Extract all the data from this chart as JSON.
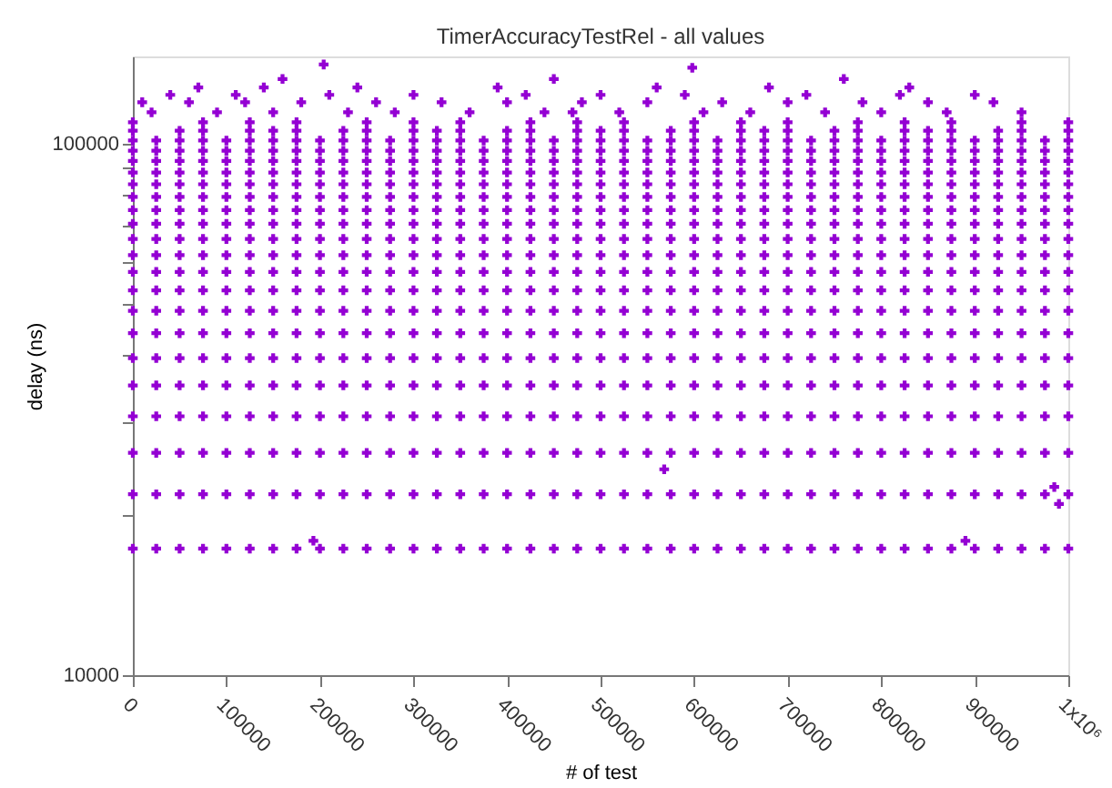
{
  "chart_data": {
    "type": "scatter",
    "title": "TimerAccuracyTestRel - all values",
    "xlabel": "# of test",
    "ylabel": "delay (ns)",
    "log": "y",
    "marker": "cross",
    "xlim": [
      0,
      1000000
    ],
    "xticks": [
      0,
      100000,
      200000,
      300000,
      400000,
      500000,
      600000,
      700000,
      800000,
      900000,
      {
        "value": 1000000,
        "label": "1x10⁶"
      }
    ],
    "ylim": [
      10000,
      146000
    ],
    "yticks": [
      10000,
      {
        "value": 20000,
        "label": null
      },
      {
        "value": 30000,
        "label": null
      },
      {
        "value": 40000,
        "label": null
      },
      {
        "value": 50000,
        "label": null
      },
      {
        "value": 60000,
        "label": null
      },
      {
        "value": 70000,
        "label": null
      },
      {
        "value": 80000,
        "label": null
      },
      {
        "value": 90000,
        "label": null
      },
      100000
    ],
    "x": [
      0,
      25000,
      50000,
      75000,
      100000,
      125000,
      150000,
      175000,
      200000,
      225000,
      250000,
      275000,
      300000,
      325000,
      350000,
      375000,
      400000,
      425000,
      450000,
      475000,
      500000,
      525000,
      550000,
      575000,
      600000,
      625000,
      650000,
      675000,
      700000,
      725000,
      750000,
      775000,
      800000,
      825000,
      850000,
      875000,
      900000,
      925000,
      950000,
      975000,
      1000000
    ],
    "series": [
      {
        "color": "#9400d3",
        "values": [
          17300,
          17300,
          17300,
          17300,
          17300,
          17300,
          17300,
          17300,
          17300,
          17300,
          17300,
          17300,
          17300,
          17300,
          17300,
          17300,
          17300,
          17300,
          17300,
          17300,
          17300,
          17300,
          17300,
          17300,
          17300,
          17300,
          17300,
          17300,
          17300,
          17300,
          17300,
          17300,
          17300,
          17300,
          17300,
          17300,
          17300,
          17300,
          17300,
          17300,
          17300
        ]
      },
      {
        "color": "#9400d3",
        "values": [
          21900,
          21900,
          21900,
          21900,
          21900,
          21900,
          21900,
          21900,
          21900,
          21900,
          21900,
          21900,
          21900,
          21900,
          21900,
          21900,
          21900,
          21900,
          21900,
          21900,
          21900,
          21900,
          21900,
          21900,
          21900,
          21900,
          21900,
          21900,
          21900,
          21900,
          21900,
          21900,
          21900,
          21900,
          21900,
          21900,
          21900,
          21900,
          21900,
          21900,
          21900
        ]
      },
      {
        "color": "#9400d3",
        "values": [
          26200,
          26200,
          26200,
          26200,
          26200,
          26200,
          26200,
          26200,
          26200,
          26200,
          26200,
          26200,
          26200,
          26200,
          26200,
          26200,
          26200,
          26200,
          26200,
          26200,
          26200,
          26200,
          26200,
          26200,
          26200,
          26200,
          26200,
          26200,
          26200,
          26200,
          26200,
          26200,
          26200,
          26200,
          26200,
          26200,
          26200,
          26200,
          26200,
          26200,
          26200
        ]
      },
      {
        "color": "#9400d3",
        "values": [
          30700,
          30700,
          30700,
          30700,
          30700,
          30700,
          30700,
          30700,
          30700,
          30700,
          30700,
          30700,
          30700,
          30700,
          30700,
          30700,
          30700,
          30700,
          30700,
          30700,
          30700,
          30700,
          30700,
          30700,
          30700,
          30700,
          30700,
          30700,
          30700,
          30700,
          30700,
          30700,
          30700,
          30700,
          30700,
          30700,
          30700,
          30700,
          30700,
          30700,
          30700
        ]
      },
      {
        "color": "#9400d3",
        "values": [
          35100,
          35100,
          35100,
          35100,
          35100,
          35100,
          35100,
          35100,
          35100,
          35100,
          35100,
          35100,
          35100,
          35100,
          35100,
          35100,
          35100,
          35100,
          35100,
          35100,
          35100,
          35100,
          35100,
          35100,
          35100,
          35100,
          35100,
          35100,
          35100,
          35100,
          35100,
          35100,
          35100,
          35100,
          35100,
          35100,
          35100,
          35100,
          35100,
          35100,
          35100
        ]
      },
      {
        "color": "#9400d3",
        "values": [
          39500,
          39500,
          39500,
          39500,
          39500,
          39500,
          39500,
          39500,
          39500,
          39500,
          39500,
          39500,
          39500,
          39500,
          39500,
          39500,
          39500,
          39500,
          39500,
          39500,
          39500,
          39500,
          39500,
          39500,
          39500,
          39500,
          39500,
          39500,
          39500,
          39500,
          39500,
          39500,
          39500,
          39500,
          39500,
          39500,
          39500,
          39500,
          39500,
          39500,
          39500
        ]
      },
      {
        "color": "#9400d3",
        "values": [
          44000,
          44000,
          44000,
          44000,
          44000,
          44000,
          44000,
          44000,
          44000,
          44000,
          44000,
          44000,
          44000,
          44000,
          44000,
          44000,
          44000,
          44000,
          44000,
          44000,
          44000,
          44000,
          44000,
          44000,
          44000,
          44000,
          44000,
          44000,
          44000,
          44000,
          44000,
          44000,
          44000,
          44000,
          44000,
          44000,
          44000,
          44000,
          44000,
          44000,
          44000
        ]
      },
      {
        "color": "#9400d3",
        "values": [
          48500,
          48500,
          48500,
          48500,
          48500,
          48500,
          48500,
          48500,
          48500,
          48500,
          48500,
          48500,
          48500,
          48500,
          48500,
          48500,
          48500,
          48500,
          48500,
          48500,
          48500,
          48500,
          48500,
          48500,
          48500,
          48500,
          48500,
          48500,
          48500,
          48500,
          48500,
          48500,
          48500,
          48500,
          48500,
          48500,
          48500,
          48500,
          48500,
          48500,
          48500
        ]
      },
      {
        "color": "#9400d3",
        "values": [
          53000,
          53000,
          53000,
          53000,
          53000,
          53000,
          53000,
          53000,
          53000,
          53000,
          53000,
          53000,
          53000,
          53000,
          53000,
          53000,
          53000,
          53000,
          53000,
          53000,
          53000,
          53000,
          53000,
          53000,
          53000,
          53000,
          53000,
          53000,
          53000,
          53000,
          53000,
          53000,
          53000,
          53000,
          53000,
          53000,
          53000,
          53000,
          53000,
          53000,
          53000
        ]
      },
      {
        "color": "#9400d3",
        "values": [
          57400,
          57400,
          57400,
          57400,
          57400,
          57400,
          57400,
          57400,
          57400,
          57400,
          57400,
          57400,
          57400,
          57400,
          57400,
          57400,
          57400,
          57400,
          57400,
          57400,
          57400,
          57400,
          57400,
          57400,
          57400,
          57400,
          57400,
          57400,
          57400,
          57400,
          57400,
          57400,
          57400,
          57400,
          57400,
          57400,
          57400,
          57400,
          57400,
          57400,
          57400
        ]
      },
      {
        "color": "#9400d3",
        "values": [
          61700,
          61700,
          61700,
          61700,
          61700,
          61700,
          61700,
          61700,
          61700,
          61700,
          61700,
          61700,
          61700,
          61700,
          61700,
          61700,
          61700,
          61700,
          61700,
          61700,
          61700,
          61700,
          61700,
          61700,
          61700,
          61700,
          61700,
          61700,
          61700,
          61700,
          61700,
          61700,
          61700,
          61700,
          61700,
          61700,
          61700,
          61700,
          61700,
          61700,
          61700
        ]
      },
      {
        "color": "#9400d3",
        "values": [
          66200,
          66200,
          66200,
          66200,
          66200,
          66200,
          66200,
          66200,
          66200,
          66200,
          66200,
          66200,
          66200,
          66200,
          66200,
          66200,
          66200,
          66200,
          66200,
          66200,
          66200,
          66200,
          66200,
          66200,
          66200,
          66200,
          66200,
          66200,
          66200,
          66200,
          66200,
          66200,
          66200,
          66200,
          66200,
          66200,
          66200,
          66200,
          66200,
          66200,
          66200
        ]
      },
      {
        "color": "#9400d3",
        "values": [
          70700,
          70700,
          70700,
          70700,
          70700,
          70700,
          70700,
          70700,
          70700,
          70700,
          70700,
          70700,
          70700,
          70700,
          70700,
          70700,
          70700,
          70700,
          70700,
          70700,
          70700,
          70700,
          70700,
          70700,
          70700,
          70700,
          70700,
          70700,
          70700,
          70700,
          70700,
          70700,
          70700,
          70700,
          70700,
          70700,
          70700,
          70700,
          70700,
          70700,
          70700
        ]
      },
      {
        "color": "#9400d3",
        "values": [
          75000,
          75000,
          75000,
          75000,
          75000,
          75000,
          75000,
          75000,
          75000,
          75000,
          75000,
          75000,
          75000,
          75000,
          75000,
          75000,
          75000,
          75000,
          75000,
          75000,
          75000,
          75000,
          75000,
          75000,
          75000,
          75000,
          75000,
          75000,
          75000,
          75000,
          75000,
          75000,
          75000,
          75000,
          75000,
          75000,
          75000,
          75000,
          75000,
          75000,
          75000
        ]
      },
      {
        "color": "#9400d3",
        "values": [
          79400,
          79400,
          79400,
          79400,
          79400,
          79400,
          79400,
          79400,
          79400,
          79400,
          79400,
          79400,
          79400,
          79400,
          79400,
          79400,
          79400,
          79400,
          79400,
          79400,
          79400,
          79400,
          79400,
          79400,
          79400,
          79400,
          79400,
          79400,
          79400,
          79400,
          79400,
          79400,
          79400,
          79400,
          79400,
          79400,
          79400,
          79400,
          79400,
          79400,
          79400
        ]
      },
      {
        "color": "#9400d3",
        "values": [
          83900,
          83900,
          83900,
          83900,
          83900,
          83900,
          83900,
          83900,
          83900,
          83900,
          83900,
          83900,
          83900,
          83900,
          83900,
          83900,
          83900,
          83900,
          83900,
          83900,
          83900,
          83900,
          83900,
          83900,
          83900,
          83900,
          83900,
          83900,
          83900,
          83900,
          83900,
          83900,
          83900,
          83900,
          83900,
          83900,
          83900,
          83900,
          83900,
          83900,
          83900
        ]
      },
      {
        "color": "#9400d3",
        "values": [
          88300,
          88300,
          88300,
          88300,
          88300,
          88300,
          88300,
          88300,
          88300,
          88300,
          88300,
          88300,
          88300,
          88300,
          88300,
          88300,
          88300,
          88300,
          88300,
          88300,
          88300,
          88300,
          88300,
          88300,
          88300,
          88300,
          88300,
          88300,
          88300,
          88300,
          88300,
          88300,
          88300,
          88300,
          88300,
          88300,
          88300,
          88300,
          88300,
          88300,
          88300
        ]
      },
      {
        "color": "#9400d3",
        "values": [
          92800,
          92800,
          92800,
          92800,
          92800,
          92800,
          92800,
          92800,
          92800,
          92800,
          92800,
          92800,
          92800,
          92800,
          92800,
          92800,
          92800,
          92800,
          92800,
          92800,
          92800,
          92800,
          92800,
          92800,
          92800,
          92800,
          92800,
          92800,
          92800,
          92800,
          92800,
          92800,
          92800,
          92800,
          92800,
          92800,
          92800,
          92800,
          92800,
          92800,
          92800
        ]
      },
      {
        "color": "#9400d3",
        "values": [
          97000,
          97000,
          97000,
          97000,
          97000,
          97000,
          97000,
          97000,
          97000,
          97000,
          97000,
          97000,
          97000,
          97000,
          97000,
          97000,
          97000,
          97000,
          97000,
          97000,
          97000,
          97000,
          97000,
          97000,
          97000,
          97000,
          97000,
          97000,
          97000,
          97000,
          97000,
          97000,
          97000,
          97000,
          97000,
          97000,
          97000,
          97000,
          97000,
          97000,
          97000
        ]
      },
      {
        "color": "#9400d3",
        "values": [
          101400,
          101400,
          101400,
          101400,
          101400,
          101400,
          101400,
          101400,
          101400,
          101400,
          101400,
          101400,
          101400,
          101400,
          101400,
          101400,
          101400,
          101400,
          101400,
          101400,
          101400,
          101400,
          101400,
          101400,
          101400,
          101400,
          101400,
          101400,
          101400,
          101400,
          101400,
          101400,
          101400,
          101400,
          101400,
          101400,
          101400,
          101400,
          101400,
          101400,
          101400
        ]
      },
      {
        "color": "#9400d3",
        "values": [
          105800,
          null,
          105800,
          105800,
          null,
          105800,
          105800,
          105800,
          null,
          105800,
          105800,
          null,
          105800,
          105800,
          105800,
          null,
          105800,
          105800,
          null,
          105800,
          105800,
          105800,
          null,
          105800,
          105800,
          null,
          105800,
          105800,
          105800,
          null,
          105800,
          105800,
          null,
          105800,
          105800,
          105800,
          null,
          105800,
          105800,
          null,
          105800
        ]
      },
      {
        "color": "#9400d3",
        "values": [
          109800,
          null,
          null,
          109800,
          null,
          109800,
          null,
          109800,
          null,
          null,
          109800,
          null,
          109800,
          null,
          109800,
          null,
          null,
          109800,
          null,
          109800,
          null,
          109800,
          null,
          null,
          109800,
          null,
          109800,
          null,
          109800,
          null,
          null,
          109800,
          null,
          109800,
          null,
          109800,
          null,
          null,
          109800,
          null,
          109800
        ]
      },
      {
        "color": "#9400d3",
        "x": [
          20000,
          90000,
          150000,
          230000,
          280000,
          360000,
          440000,
          470000,
          520000,
          610000,
          660000,
          740000,
          800000,
          870000,
          950000
        ],
        "values": [
          114600,
          114600,
          114600,
          114600,
          114600,
          114600,
          114600,
          114600,
          114600,
          114600,
          114600,
          114600,
          114600,
          114600,
          114600
        ]
      },
      {
        "color": "#9400d3",
        "x": [
          10000,
          60000,
          120000,
          180000,
          260000,
          330000,
          400000,
          480000,
          550000,
          630000,
          700000,
          780000,
          850000,
          920000
        ],
        "values": [
          119700,
          119700,
          119700,
          119700,
          119700,
          119700,
          119700,
          119700,
          119700,
          119700,
          119700,
          119700,
          119700,
          119700
        ]
      },
      {
        "color": "#9400d3",
        "x": [
          40000,
          110000,
          210000,
          300000,
          420000,
          500000,
          590000,
          720000,
          820000,
          900000
        ],
        "values": [
          123600,
          123600,
          123600,
          123600,
          123600,
          123600,
          123600,
          123600,
          123600,
          123600
        ]
      },
      {
        "color": "#9400d3",
        "x": [
          70000,
          140000,
          240000,
          390000,
          560000,
          680000,
          830000
        ],
        "values": [
          127600,
          127600,
          127600,
          127600,
          127600,
          127600,
          127600
        ]
      },
      {
        "color": "#9400d3",
        "x": [
          160000,
          450000,
          760000
        ],
        "values": [
          132400,
          132400,
          132400
        ]
      },
      {
        "color": "#9400d3",
        "x": [
          204000,
          598000,
          568000,
          193000,
          990000,
          985000,
          890000
        ],
        "values": [
          141000,
          139000,
          24400,
          17900,
          21000,
          22600,
          17900
        ]
      }
    ]
  }
}
